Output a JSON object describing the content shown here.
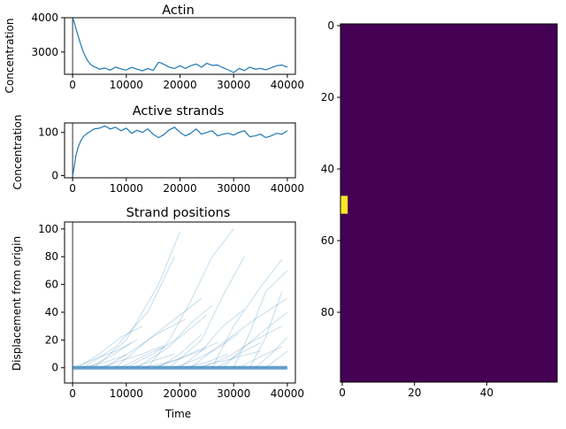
{
  "chart_data": [
    {
      "type": "line",
      "title": "Actin",
      "xlabel": "",
      "ylabel": "Concentration",
      "xlim": [
        -1500,
        41500
      ],
      "ylim": [
        2350,
        4000
      ],
      "xticks": [
        0,
        10000,
        20000,
        30000,
        40000
      ],
      "yticks": [
        3000,
        4000
      ],
      "vline_x": 0,
      "color": "#1f77b4",
      "x": [
        0,
        300,
        600,
        1000,
        1500,
        2000,
        2500,
        3000,
        3500,
        4000,
        4500,
        5000,
        6000,
        7000,
        8000,
        9000,
        10000,
        11000,
        12000,
        13000,
        14000,
        15000,
        16000,
        16500,
        17000,
        18000,
        19000,
        20000,
        21000,
        22000,
        23000,
        24000,
        25000,
        26000,
        27000,
        28000,
        29000,
        30000,
        31000,
        32000,
        33000,
        34000,
        35000,
        36000,
        37000,
        38000,
        39000,
        40000
      ],
      "y": [
        4000,
        3870,
        3700,
        3480,
        3230,
        3000,
        2830,
        2700,
        2620,
        2570,
        2540,
        2500,
        2530,
        2470,
        2560,
        2510,
        2470,
        2550,
        2500,
        2450,
        2520,
        2460,
        2700,
        2680,
        2640,
        2560,
        2520,
        2600,
        2520,
        2600,
        2650,
        2560,
        2670,
        2610,
        2620,
        2540,
        2480,
        2400,
        2520,
        2460,
        2560,
        2500,
        2520,
        2480,
        2540,
        2600,
        2620,
        2560
      ]
    },
    {
      "type": "line",
      "title": "Active strands",
      "xlabel": "",
      "ylabel": "Concentration",
      "xlim": [
        -1500,
        41500
      ],
      "ylim": [
        -5,
        122
      ],
      "xticks": [
        0,
        10000,
        20000,
        30000,
        40000
      ],
      "yticks": [
        0,
        100
      ],
      "vline_x": 0,
      "color": "#1f77b4",
      "x": [
        0,
        300,
        600,
        1000,
        1500,
        2000,
        2500,
        3000,
        3500,
        4000,
        5000,
        6000,
        7000,
        8000,
        9000,
        10000,
        11000,
        12000,
        13000,
        14000,
        15000,
        16000,
        17000,
        18000,
        19000,
        20000,
        21000,
        22000,
        23000,
        24000,
        25000,
        26000,
        27000,
        28000,
        29000,
        30000,
        31000,
        32000,
        33000,
        34000,
        35000,
        36000,
        37000,
        38000,
        39000,
        40000
      ],
      "y": [
        0,
        20,
        45,
        65,
        80,
        90,
        96,
        100,
        104,
        108,
        110,
        115,
        108,
        112,
        104,
        110,
        98,
        105,
        100,
        108,
        96,
        88,
        95,
        106,
        112,
        100,
        92,
        98,
        108,
        96,
        100,
        104,
        92,
        96,
        98,
        94,
        100,
        104,
        90,
        92,
        96,
        88,
        92,
        98,
        96,
        104
      ]
    },
    {
      "type": "line",
      "title": "Strand positions",
      "xlabel": "Time",
      "ylabel": "Displacement from origin",
      "xlim": [
        -1500,
        41500
      ],
      "ylim": [
        -11,
        105
      ],
      "xticks": [
        0,
        10000,
        20000,
        30000,
        40000
      ],
      "yticks": [
        0,
        20,
        40,
        60,
        80,
        100
      ],
      "vline_x": 0,
      "color": "#1f77b4",
      "series": [
        {
          "x": [
            4000,
            10000,
            16000,
            20000
          ],
          "y": [
            0,
            20,
            60,
            98
          ]
        },
        {
          "x": [
            2000,
            8000,
            14000,
            19000
          ],
          "y": [
            0,
            15,
            40,
            80
          ]
        },
        {
          "x": [
            18000,
            24000,
            28000,
            32000
          ],
          "y": [
            0,
            20,
            52,
            80
          ]
        },
        {
          "x": [
            14000,
            18000,
            22000,
            26000,
            30000
          ],
          "y": [
            0,
            20,
            48,
            80,
            100
          ]
        },
        {
          "x": [
            26000,
            30000,
            35000,
            39000
          ],
          "y": [
            0,
            30,
            58,
            78
          ]
        },
        {
          "x": [
            30000,
            33000,
            36000,
            40000
          ],
          "y": [
            0,
            25,
            55,
            70
          ]
        },
        {
          "x": [
            8000,
            14000,
            19000,
            24000
          ],
          "y": [
            0,
            20,
            35,
            50
          ]
        },
        {
          "x": [
            12000,
            18000,
            22000,
            26000
          ],
          "y": [
            0,
            15,
            32,
            45
          ]
        },
        {
          "x": [
            22000,
            28000,
            34000,
            40000
          ],
          "y": [
            0,
            18,
            35,
            50
          ]
        },
        {
          "x": [
            33000,
            36000,
            39000
          ],
          "y": [
            0,
            22,
            55
          ]
        },
        {
          "x": [
            1000,
            5000,
            9000,
            13000
          ],
          "y": [
            0,
            10,
            22,
            30
          ]
        },
        {
          "x": [
            6000,
            11000,
            16000,
            21000
          ],
          "y": [
            0,
            12,
            25,
            35
          ]
        },
        {
          "x": [
            10000,
            15000,
            20000,
            25000
          ],
          "y": [
            0,
            10,
            22,
            38
          ]
        },
        {
          "x": [
            20000,
            24000,
            28000,
            32000
          ],
          "y": [
            0,
            12,
            30,
            42
          ]
        },
        {
          "x": [
            28000,
            32000,
            36000,
            40000
          ],
          "y": [
            0,
            15,
            28,
            40
          ]
        },
        {
          "x": [
            3000,
            7000,
            11000
          ],
          "y": [
            0,
            8,
            18
          ]
        },
        {
          "x": [
            16000,
            20000,
            24000
          ],
          "y": [
            0,
            10,
            24
          ]
        },
        {
          "x": [
            24000,
            29000,
            34000,
            39000
          ],
          "y": [
            0,
            8,
            20,
            30
          ]
        },
        {
          "x": [
            34000,
            37000,
            40000
          ],
          "y": [
            0,
            10,
            22
          ]
        },
        {
          "x": [
            0,
            4000,
            8000,
            12000
          ],
          "y": [
            0,
            6,
            12,
            20
          ]
        },
        {
          "x": [
            9000,
            13000,
            17000
          ],
          "y": [
            0,
            8,
            15
          ]
        },
        {
          "x": [
            15000,
            19000,
            23000,
            27000
          ],
          "y": [
            0,
            5,
            12,
            18
          ]
        },
        {
          "x": [
            19000,
            23000,
            27000,
            31000
          ],
          "y": [
            0,
            6,
            14,
            25
          ]
        },
        {
          "x": [
            27000,
            31000,
            35000
          ],
          "y": [
            0,
            10,
            18
          ]
        },
        {
          "x": [
            31000,
            35000,
            39000
          ],
          "y": [
            0,
            8,
            15
          ]
        },
        {
          "x": [
            5000,
            9000,
            13000,
            17000
          ],
          "y": [
            0,
            5,
            10,
            16
          ]
        },
        {
          "x": [
            11000,
            15000,
            19000
          ],
          "y": [
            0,
            5,
            10
          ]
        },
        {
          "x": [
            21000,
            25000,
            29000
          ],
          "y": [
            0,
            4,
            10
          ]
        },
        {
          "x": [
            36000,
            38000,
            40000
          ],
          "y": [
            0,
            6,
            12
          ]
        },
        {
          "x": [
            2000,
            6000,
            10000
          ],
          "y": [
            0,
            4,
            9
          ]
        },
        {
          "x": [
            13000,
            17000,
            21000,
            25000
          ],
          "y": [
            0,
            3,
            8,
            14
          ]
        },
        {
          "x": [
            23000,
            27000,
            31000,
            35000
          ],
          "y": [
            0,
            4,
            8,
            12
          ]
        }
      ]
    },
    {
      "type": "heatmap",
      "title": "",
      "xlim": [
        -0.5,
        59.5
      ],
      "ylim": [
        99.5,
        -0.5
      ],
      "xticks": [
        0,
        20,
        40
      ],
      "yticks": [
        0,
        20,
        40,
        60,
        80
      ],
      "background_value": 0,
      "background_color": "#440154",
      "highlight_color": "#fde725",
      "highlight_cells": {
        "cols": [
          0,
          1
        ],
        "rows": [
          48,
          52
        ]
      }
    }
  ]
}
